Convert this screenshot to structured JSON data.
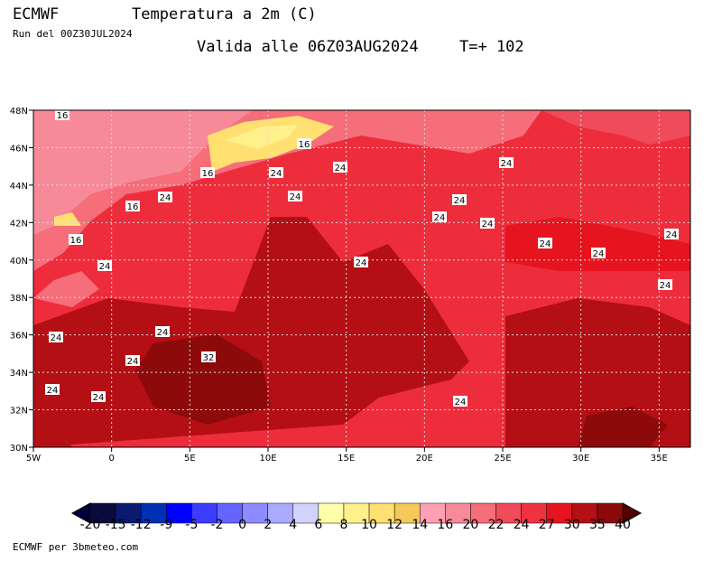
{
  "header": {
    "model": "ECMWF",
    "title": "Temperatura a 2m (C)",
    "run": "Run del 00Z30JUL2024",
    "valid": "Valida alle 06Z03AUG2024",
    "step": "T=+ 102"
  },
  "map": {
    "lat_labels": [
      "48N",
      "46N",
      "44N",
      "42N",
      "40N",
      "38N",
      "36N",
      "34N",
      "32N",
      "30N"
    ],
    "lon_labels": [
      "5W",
      "0",
      "5E",
      "10E",
      "15E",
      "20E",
      "25E",
      "30E",
      "35E"
    ],
    "contour_labels": [
      "16",
      "16",
      "16",
      "24",
      "24",
      "24",
      "24",
      "16",
      "24",
      "24",
      "24",
      "24",
      "16",
      "24",
      "24",
      "24",
      "24",
      "24",
      "24",
      "24",
      "24",
      "32",
      "24",
      "24",
      "24",
      "24"
    ]
  },
  "legend": {
    "levels": [
      -20,
      -15,
      -12,
      -9,
      -5,
      -2,
      0,
      2,
      4,
      6,
      8,
      10,
      12,
      14,
      16,
      20,
      22,
      24,
      27,
      30,
      35,
      40
    ],
    "colors": [
      "#0a0a3c",
      "#0a1a6e",
      "#0030b4",
      "#0000ff",
      "#3c3cff",
      "#6464ff",
      "#8c8cff",
      "#aaaaff",
      "#d2d2ff",
      "#ffffaa",
      "#fff08c",
      "#ffe070",
      "#f5c85a",
      "#ffa0b4",
      "#f78a98",
      "#f56e7a",
      "#f04b5a",
      "#f03240",
      "#e6141e",
      "#b40f14",
      "#8c0a0a"
    ]
  },
  "footer": "ECMWF per 3bmeteo.com"
}
